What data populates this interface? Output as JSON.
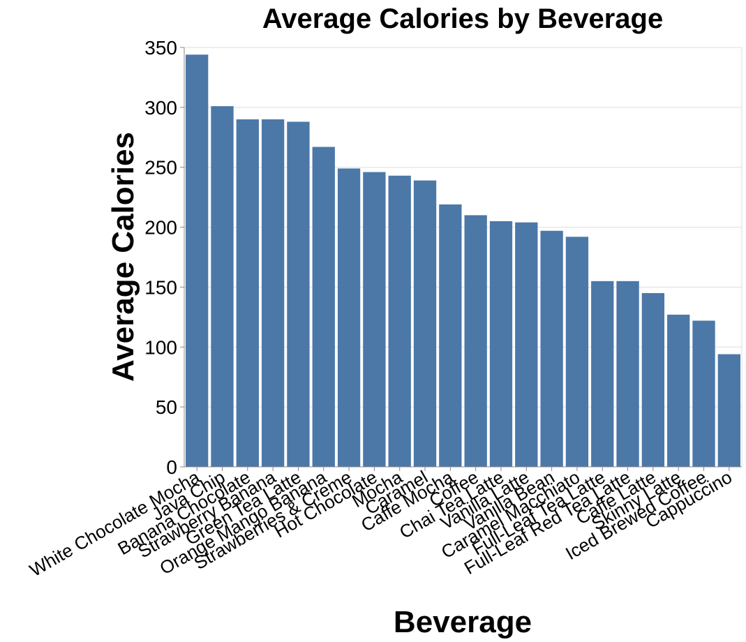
{
  "chart_data": {
    "type": "bar",
    "title": "Average Calories by Beverage",
    "xlabel": "Beverage",
    "ylabel": "Average Calories",
    "ylim": [
      0,
      350
    ],
    "yticks": [
      0,
      50,
      100,
      150,
      200,
      250,
      300,
      350
    ],
    "grid": true,
    "bar_color": "#4c78a8",
    "categories": [
      "White Chocolate Mocha",
      "Java Chip",
      "Banana Chocolate",
      "Strawberry Banana",
      "Green Tea Latte",
      "Orange Mango Banana",
      "Strawberries & Creme",
      "Hot Chocolate",
      "Mocha",
      "Caramel",
      "Caffe Mocha",
      "Coffee",
      "Chai Tea Latte",
      "Vanilla Latte",
      "Vanilla Bean",
      "Caramel Macchiato",
      "Full-Leaf Tea Latte",
      "Full-Leaf Red Tea Latte",
      "Caffe Latte",
      "Skinny Latte",
      "Iced Brewed Coffee",
      "Cappuccino"
    ],
    "values": [
      344,
      301,
      290,
      290,
      288,
      267,
      249,
      246,
      243,
      239,
      219,
      210,
      205,
      204,
      197,
      192,
      155,
      155,
      145,
      127,
      122,
      94
    ]
  }
}
